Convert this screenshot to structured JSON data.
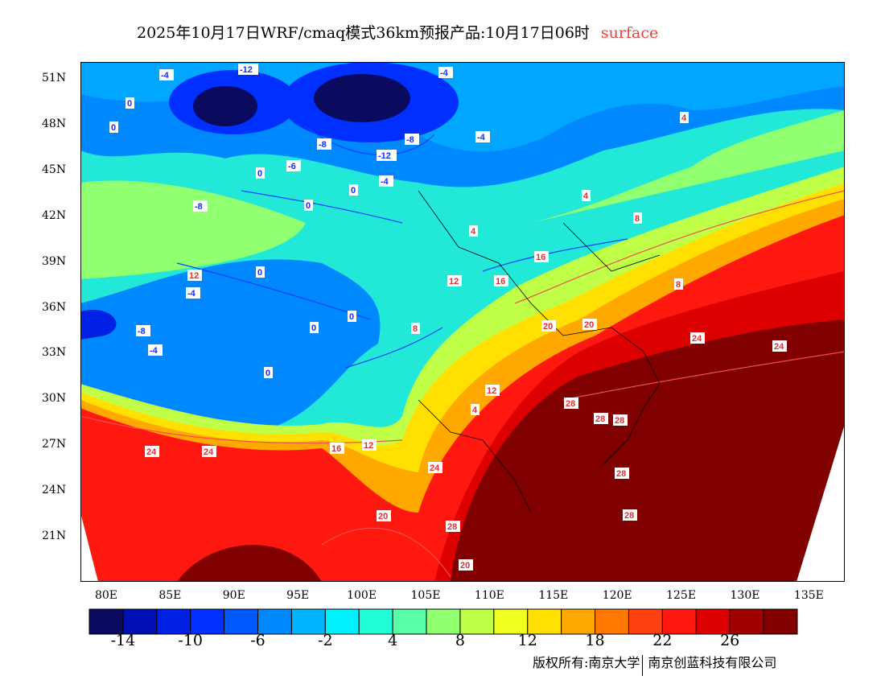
{
  "title": {
    "main": "2025年10月17日WRF/cmaq模式36km预报产品:10月17日06时",
    "level": "surface",
    "level_color": "#e8413c"
  },
  "lat_labels": [
    "51N",
    "48N",
    "45N",
    "42N",
    "39N",
    "36N",
    "33N",
    "30N",
    "27N",
    "24N",
    "21N"
  ],
  "lon_labels": [
    "80E",
    "85E",
    "90E",
    "95E",
    "100E",
    "105E",
    "110E",
    "115E",
    "120E",
    "125E",
    "130E",
    "135E"
  ],
  "colorbar": {
    "colors": [
      "#0a0a5e",
      "#0010b4",
      "#0020e6",
      "#0030ff",
      "#0058ff",
      "#0088ff",
      "#00b4ff",
      "#00f0ff",
      "#22ffd8",
      "#58ffa8",
      "#90ff70",
      "#c0ff48",
      "#f0ff20",
      "#ffe000",
      "#ffa800",
      "#ff7800",
      "#ff4010",
      "#ff1810",
      "#dc0000",
      "#a00000",
      "#800000"
    ],
    "labels": [
      "-14",
      "-10",
      "-6",
      "-2",
      "4",
      "8",
      "12",
      "18",
      "22",
      "26"
    ]
  },
  "contour_labels": [
    "-12",
    "-4",
    "-4",
    "-8",
    "-12",
    "-8",
    "-4",
    "-8",
    "-6",
    "-4",
    "0",
    "0",
    "0",
    "0",
    "0",
    "0",
    "0",
    "4",
    "4",
    "4",
    "8",
    "8",
    "12",
    "12",
    "16",
    "16",
    "20",
    "20",
    "24",
    "24",
    "24",
    "24",
    "28",
    "28",
    "28",
    "28",
    "28",
    "28",
    "20",
    "16",
    "12",
    "12",
    "8",
    "4",
    "-4",
    "-8",
    "-4",
    "0",
    "0",
    "24",
    "20"
  ],
  "copyright": {
    "owner": "版权所有:南京大学",
    "company": "南京创蓝科技有限公司"
  }
}
